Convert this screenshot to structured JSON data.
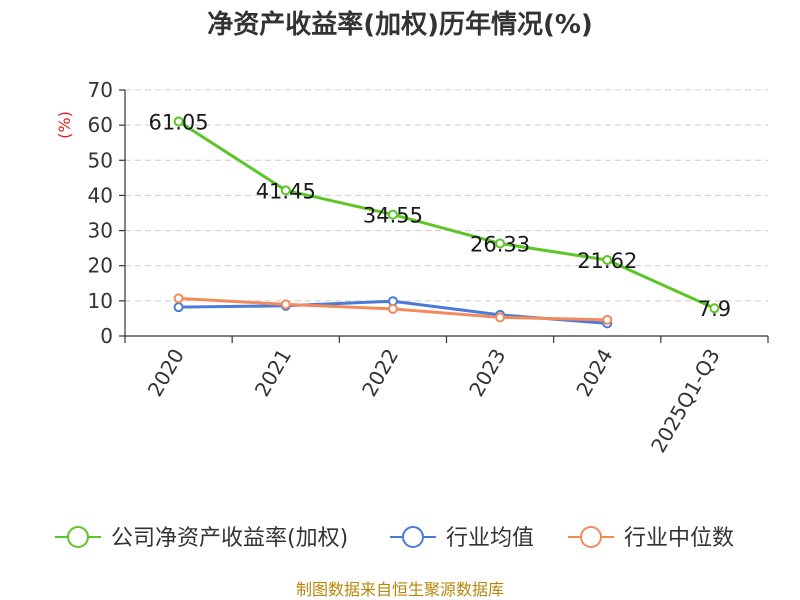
{
  "chart_data": {
    "type": "line",
    "title": "净资产收益率(加权)历年情况(%)",
    "ylabel": "(%)",
    "xlabel": "",
    "ylim": [
      0,
      70
    ],
    "yticks": [
      0,
      10,
      20,
      30,
      40,
      50,
      60,
      70
    ],
    "grid": true,
    "legend_position": "bottom",
    "categories": [
      "2020",
      "2021",
      "2022",
      "2023",
      "2024",
      "2025Q1-Q3"
    ],
    "series": [
      {
        "name": "公司净资产收益率(加权)",
        "color": "#5cc626",
        "values": [
          61.05,
          41.45,
          34.55,
          26.33,
          21.62,
          7.9
        ],
        "labels": [
          "61.05",
          "41.45",
          "34.55",
          "26.33",
          "21.62",
          "7.9"
        ]
      },
      {
        "name": "行业均值",
        "color": "#4a7bd9",
        "values": [
          8.2,
          8.6,
          9.9,
          6.0,
          3.6,
          null
        ]
      },
      {
        "name": "行业中位数",
        "color": "#f28a5c",
        "values": [
          10.7,
          9.0,
          7.7,
          5.3,
          4.6,
          null
        ]
      }
    ]
  },
  "source": "制图数据来自恒生聚源数据库"
}
